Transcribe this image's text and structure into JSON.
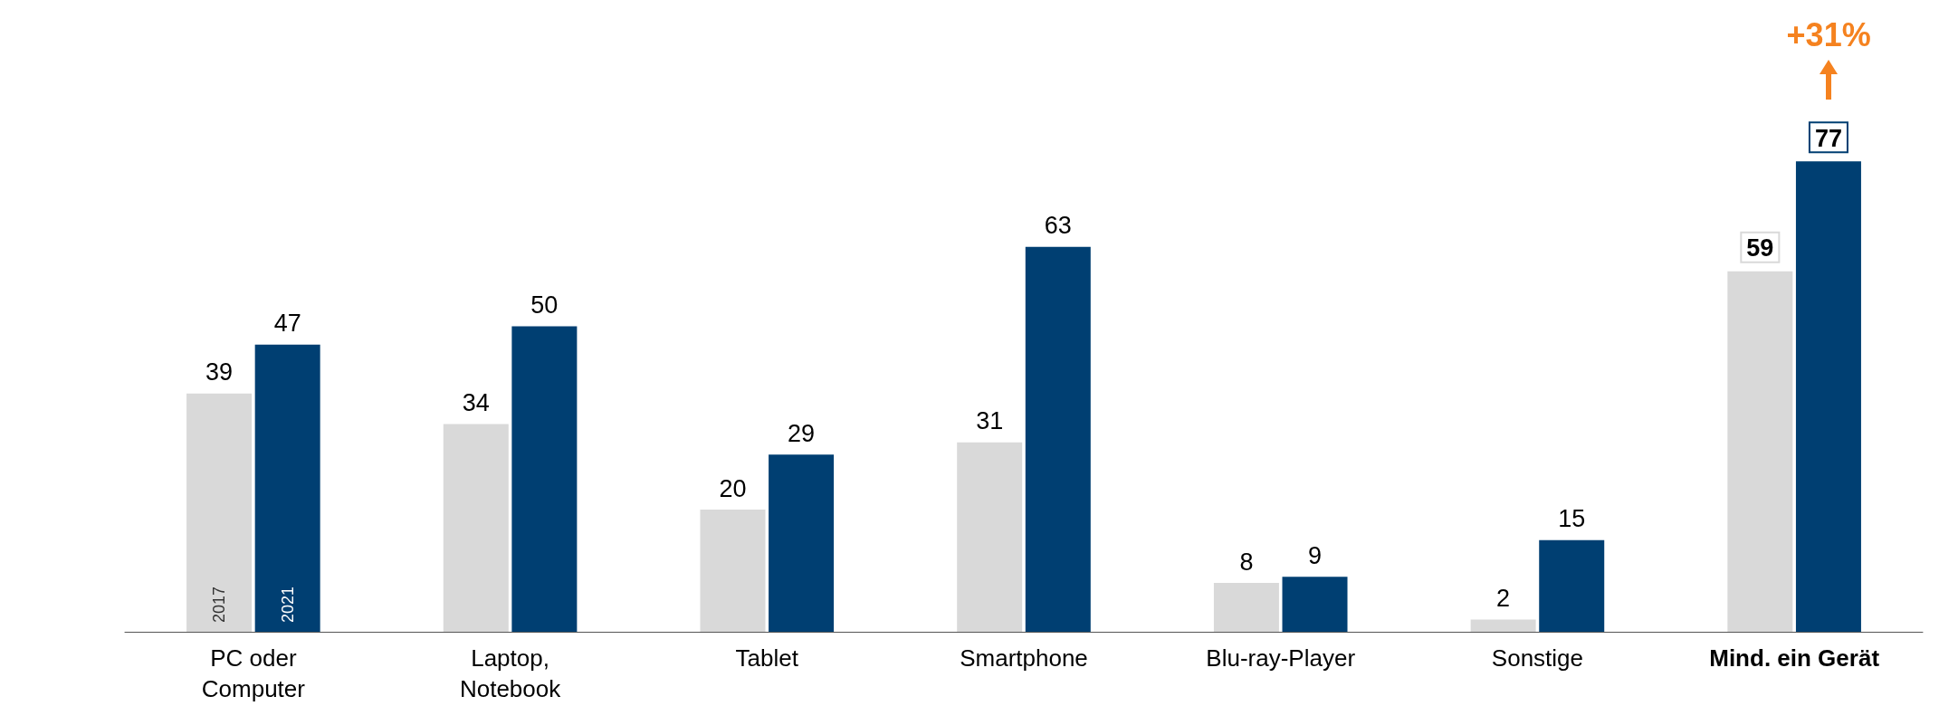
{
  "chart_data": {
    "type": "bar",
    "categories": [
      "PC oder Computer",
      "Laptop, Notebook",
      "Tablet",
      "Smartphone",
      "Blu-ray-Player",
      "Sonstige",
      "Mind. ein Gerät"
    ],
    "series": [
      {
        "name": "2017",
        "color": "#d9d9d9",
        "values": [
          39,
          34,
          20,
          31,
          8,
          2,
          59
        ]
      },
      {
        "name": "2021",
        "color": "#003f72",
        "values": [
          47,
          50,
          29,
          63,
          9,
          15,
          77
        ]
      }
    ],
    "data_labels": true,
    "legend": false,
    "annotations": [
      "+31%"
    ]
  }
}
